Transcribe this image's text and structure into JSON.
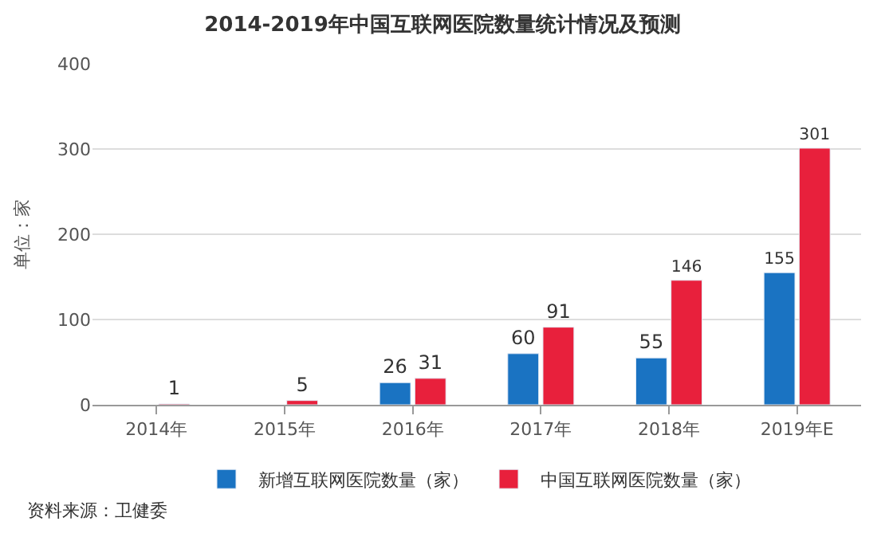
{
  "chart_data": {
    "type": "bar",
    "title": "2014-2019年中国互联网医院数量统计情况及预测",
    "ylabel": "单位：家",
    "categories": [
      "2014年",
      "2015年",
      "2016年",
      "2017年",
      "2018年",
      "2019年E"
    ],
    "series": [
      {
        "name": "新增互联网医院数量（家）",
        "color": "#1a73c2",
        "values": [
          null,
          null,
          26,
          60,
          55,
          155
        ]
      },
      {
        "name": "中国互联网医院数量（家）",
        "color": "#e8203c",
        "values": [
          1,
          5,
          31,
          91,
          146,
          301
        ]
      }
    ],
    "ylim": [
      0,
      400
    ],
    "yticks": [
      0,
      100,
      200,
      300,
      400
    ],
    "grid": "y",
    "legend": "bottom",
    "data_labels": true,
    "annotations": [
      "资料来源：卫健委"
    ]
  }
}
